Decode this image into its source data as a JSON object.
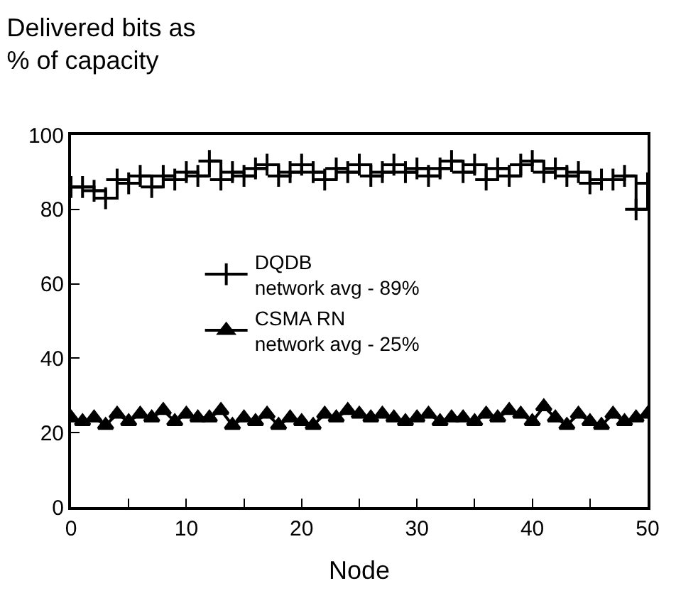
{
  "chart_data": {
    "type": "line",
    "title": "Delivered bits as\n% of capacity",
    "xlabel": "Node",
    "x": [
      0,
      1,
      2,
      3,
      4,
      5,
      6,
      7,
      8,
      9,
      10,
      11,
      12,
      13,
      14,
      15,
      16,
      17,
      18,
      19,
      20,
      21,
      22,
      23,
      24,
      25,
      26,
      27,
      28,
      29,
      30,
      31,
      32,
      33,
      34,
      35,
      36,
      37,
      38,
      39,
      40,
      41,
      42,
      43,
      44,
      45,
      46,
      47,
      48,
      49,
      50
    ],
    "series": [
      {
        "name": "DQDB\nnetwork avg - 89%",
        "type": "step",
        "color": "#000000",
        "marker": "cross",
        "values": [
          86,
          86,
          85,
          83,
          88,
          87,
          89,
          86,
          89,
          88,
          90,
          89,
          93,
          88,
          90,
          89,
          91,
          92,
          89,
          90,
          92,
          90,
          88,
          91,
          90,
          92,
          89,
          90,
          92,
          90,
          91,
          89,
          91,
          93,
          90,
          92,
          88,
          91,
          89,
          92,
          93,
          90,
          91,
          89,
          90,
          87,
          88,
          88,
          89,
          80,
          87
        ]
      },
      {
        "name": "CSMA RN\nnetwork avg - 25%",
        "color": "#000000",
        "marker": "triangle",
        "values": [
          24,
          23,
          24,
          22,
          25,
          23,
          25,
          24,
          26,
          23,
          25,
          24,
          24,
          26,
          22,
          24,
          23,
          25,
          22,
          24,
          23,
          22,
          25,
          24,
          26,
          25,
          24,
          25,
          24,
          23,
          24,
          25,
          23,
          24,
          24,
          23,
          25,
          24,
          26,
          25,
          23,
          27,
          24,
          22,
          25,
          23,
          22,
          25,
          23,
          24,
          25
        ]
      }
    ],
    "xlim": [
      0,
      50
    ],
    "xticks": [
      0,
      {
        "value": 5,
        "label": null
      },
      10,
      {
        "value": 15,
        "label": null
      },
      20,
      {
        "value": 25,
        "label": null
      },
      30,
      {
        "value": 35,
        "label": null
      },
      40,
      {
        "value": 45,
        "label": null
      },
      50
    ],
    "ylim": [
      0,
      100
    ],
    "yticks": [
      0,
      20,
      40,
      60,
      80,
      100
    ],
    "legend": "center",
    "line_style": "solid"
  }
}
